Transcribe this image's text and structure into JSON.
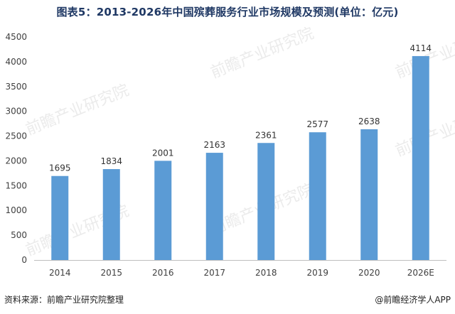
{
  "title": "图表5：2013-2026年中国殡葬服务行业市场规模及预测(单位：亿元)",
  "source": "资料来源：前瞻产业研究院整理",
  "credit": "@前瞻经济学人APP",
  "watermark_text": "前瞻产业研究院",
  "colors": {
    "bar": "#5b9bd5",
    "axis": "#bfbfbf",
    "text": "#404040",
    "title": "#1f3864"
  },
  "chart_data": {
    "type": "bar",
    "title": "图表5：2013-2026年中国殡葬服务行业市场规模及预测(单位：亿元)",
    "xlabel": "",
    "ylabel": "",
    "categories": [
      "2014",
      "2015",
      "2016",
      "2017",
      "2018",
      "2019",
      "2020",
      "2026E"
    ],
    "values": [
      1695,
      1834,
      2001,
      2163,
      2361,
      2577,
      2638,
      4114
    ],
    "ylim": [
      0,
      4500
    ],
    "yticks": [
      0,
      500,
      1000,
      1500,
      2000,
      2500,
      3000,
      3500,
      4000,
      4500
    ],
    "grid": false,
    "legend": "none",
    "data_labels": true
  }
}
